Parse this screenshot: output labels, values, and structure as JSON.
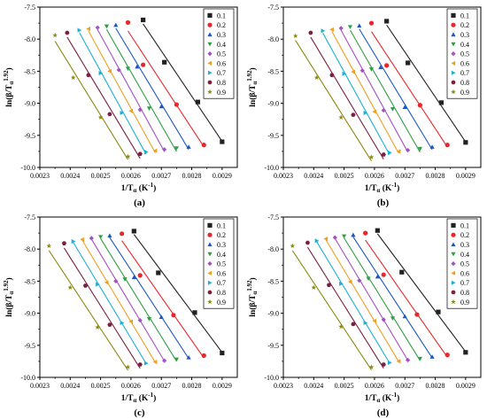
{
  "figure": {
    "panels": [
      {
        "panel_label": "(a)",
        "chart_data": {
          "type": "scatter",
          "xlabel": "1/T",
          "xlabel_sub": "α",
          "xlabel_unit": " (K",
          "xlabel_unit_sup": "-1",
          "xlabel_unit_end": ")",
          "ylabel": "ln(β/T",
          "ylabel_sub": "α",
          "ylabel_sup": "1.92",
          "ylabel_end": ")",
          "xlim": [
            0.0023,
            0.00295
          ],
          "ylim": [
            -10.0,
            -7.5
          ],
          "xticks": [
            0.0023,
            0.0024,
            0.0025,
            0.0026,
            0.0027,
            0.0028,
            0.0029
          ],
          "xtick_labels": [
            "0.0023",
            "0.0024",
            "0.0025",
            "0.0026",
            "0.0027",
            "0.0028",
            "0.0029"
          ],
          "yticks": [
            -10.0,
            -9.5,
            -9.0,
            -8.5,
            -8.0,
            -7.5
          ],
          "ytick_labels": [
            "-10.0",
            "-9.5",
            "-9.0",
            "-8.5",
            "-8.0",
            "-7.5"
          ],
          "legend_position": "top-right",
          "series": [
            {
              "name": "0.1",
              "color": "#222222",
              "marker": "square",
              "x": [
                0.00264,
                0.00271,
                0.00282,
                0.0029
              ],
              "y": [
                -7.7,
                -8.36,
                -8.98,
                -9.6
              ]
            },
            {
              "name": "0.2",
              "color": "#e8262b",
              "marker": "circle",
              "x": [
                0.00259,
                0.00264,
                0.00275,
                0.00284
              ],
              "y": [
                -7.74,
                -8.4,
                -9.02,
                -9.65
              ]
            },
            {
              "name": "0.3",
              "color": "#1a56c4",
              "marker": "triangle-up",
              "x": [
                0.00255,
                0.00262,
                0.0027,
                0.00279
              ],
              "y": [
                -7.78,
                -8.43,
                -9.05,
                -9.68
              ]
            },
            {
              "name": "0.4",
              "color": "#2e9e44",
              "marker": "triangle-down",
              "x": [
                0.00252,
                0.00259,
                0.00266,
                0.00275
              ],
              "y": [
                -7.8,
                -8.46,
                -9.08,
                -9.7
              ]
            },
            {
              "name": "0.5",
              "color": "#a44fc6",
              "marker": "diamond",
              "x": [
                0.00249,
                0.00256,
                0.00263,
                0.00271
              ],
              "y": [
                -7.82,
                -8.48,
                -9.1,
                -9.72
              ]
            },
            {
              "name": "0.6",
              "color": "#f0a020",
              "marker": "triangle-left",
              "x": [
                0.00246,
                0.00253,
                0.0026,
                0.00268
              ],
              "y": [
                -7.84,
                -8.5,
                -9.12,
                -9.74
              ]
            },
            {
              "name": "0.7",
              "color": "#1bb0d6",
              "marker": "triangle-right",
              "x": [
                0.00243,
                0.0025,
                0.00257,
                0.00265
              ],
              "y": [
                -7.86,
                -8.53,
                -9.15,
                -9.76
              ]
            },
            {
              "name": "0.8",
              "color": "#7a1f3d",
              "marker": "hexagon",
              "x": [
                0.00239,
                0.00246,
                0.00253,
                0.00263
              ],
              "y": [
                -7.9,
                -8.56,
                -9.17,
                -9.79
              ]
            },
            {
              "name": "0.9",
              "color": "#8a8a10",
              "marker": "star",
              "x": [
                0.00235,
                0.00241,
                0.0025,
                0.00259
              ],
              "y": [
                -7.94,
                -8.6,
                -9.22,
                -9.83
              ]
            }
          ]
        }
      },
      {
        "panel_label": "(b)",
        "chart_data": {
          "type": "scatter",
          "xlabel": "1/T",
          "xlabel_sub": "α",
          "xlabel_unit": " (K",
          "xlabel_unit_sup": "-1",
          "xlabel_unit_end": ")",
          "ylabel": "ln(β/T",
          "ylabel_sub": "α",
          "ylabel_sup": "1.92",
          "ylabel_end": ")",
          "xlim": [
            0.0023,
            0.00295
          ],
          "ylim": [
            -10.0,
            -7.5
          ],
          "xticks": [
            0.0023,
            0.0024,
            0.0025,
            0.0026,
            0.0027,
            0.0028,
            0.0029
          ],
          "xtick_labels": [
            "0.0023",
            "0.0024",
            "0.0025",
            "0.0026",
            "0.0027",
            "0.0028",
            "0.0029"
          ],
          "yticks": [
            -10.0,
            -9.5,
            -9.0,
            -8.5,
            -8.0,
            -7.5
          ],
          "ytick_labels": [
            "-10.0",
            "-9.5",
            "-9.0",
            "-8.5",
            "-8.0",
            "-7.5"
          ],
          "legend_position": "top-right",
          "series": [
            {
              "name": "0.1",
              "color": "#222222",
              "marker": "square",
              "x": [
                0.00264,
                0.00271,
                0.00282,
                0.0029
              ],
              "y": [
                -7.72,
                -8.37,
                -8.99,
                -9.61
              ]
            },
            {
              "name": "0.2",
              "color": "#e8262b",
              "marker": "circle",
              "x": [
                0.00259,
                0.00264,
                0.00275,
                0.00284
              ],
              "y": [
                -7.75,
                -8.41,
                -9.03,
                -9.65
              ]
            },
            {
              "name": "0.3",
              "color": "#1a56c4",
              "marker": "triangle-up",
              "x": [
                0.00255,
                0.00262,
                0.0027,
                0.00279
              ],
              "y": [
                -7.79,
                -8.44,
                -9.06,
                -9.68
              ]
            },
            {
              "name": "0.4",
              "color": "#2e9e44",
              "marker": "triangle-down",
              "x": [
                0.00252,
                0.00259,
                0.00266,
                0.00275
              ],
              "y": [
                -7.81,
                -8.47,
                -9.09,
                -9.71
              ]
            },
            {
              "name": "0.5",
              "color": "#a44fc6",
              "marker": "diamond",
              "x": [
                0.00249,
                0.00256,
                0.00263,
                0.00271
              ],
              "y": [
                -7.83,
                -8.49,
                -9.11,
                -9.73
              ]
            },
            {
              "name": "0.6",
              "color": "#f0a020",
              "marker": "triangle-left",
              "x": [
                0.00246,
                0.00253,
                0.0026,
                0.00268
              ],
              "y": [
                -7.85,
                -8.51,
                -9.13,
                -9.75
              ]
            },
            {
              "name": "0.7",
              "color": "#1bb0d6",
              "marker": "triangle-right",
              "x": [
                0.00243,
                0.0025,
                0.00257,
                0.00265
              ],
              "y": [
                -7.87,
                -8.54,
                -9.15,
                -9.77
              ]
            },
            {
              "name": "0.8",
              "color": "#7a1f3d",
              "marker": "hexagon",
              "x": [
                0.00239,
                0.00246,
                0.00253,
                0.00263
              ],
              "y": [
                -7.9,
                -8.56,
                -9.18,
                -9.8
              ]
            },
            {
              "name": "0.9",
              "color": "#8a8a10",
              "marker": "star",
              "x": [
                0.00234,
                0.00241,
                0.00249,
                0.00259
              ],
              "y": [
                -7.95,
                -8.6,
                -9.22,
                -9.84
              ]
            }
          ]
        }
      },
      {
        "panel_label": "(c)",
        "chart_data": {
          "type": "scatter",
          "xlabel": "1/T",
          "xlabel_sub": "α",
          "xlabel_unit": " (K",
          "xlabel_unit_sup": "-1",
          "xlabel_unit_end": ")",
          "ylabel": "ln(β/T",
          "ylabel_sub": "α",
          "ylabel_sup": "1.92",
          "ylabel_end": ")",
          "xlim": [
            0.0023,
            0.00295
          ],
          "ylim": [
            -10.0,
            -7.5
          ],
          "xticks": [
            0.0023,
            0.0024,
            0.0025,
            0.0026,
            0.0027,
            0.0028,
            0.0029
          ],
          "xtick_labels": [
            "0.0023",
            "0.0024",
            "0.0025",
            "0.0026",
            "0.0027",
            "0.0028",
            "0.0029"
          ],
          "yticks": [
            -10.0,
            -9.5,
            -9.0,
            -8.5,
            -8.0,
            -7.5
          ],
          "ytick_labels": [
            "-10.0",
            "-9.5",
            "-9.0",
            "-8.5",
            "-8.0",
            "-7.5"
          ],
          "legend_position": "top-right",
          "series": [
            {
              "name": "0.1",
              "color": "#222222",
              "marker": "square",
              "x": [
                0.00261,
                0.00269,
                0.00281,
                0.0029
              ],
              "y": [
                -7.72,
                -8.37,
                -8.99,
                -9.62
              ]
            },
            {
              "name": "0.2",
              "color": "#e8262b",
              "marker": "circle",
              "x": [
                0.00257,
                0.00263,
                0.00274,
                0.00284
              ],
              "y": [
                -7.76,
                -8.41,
                -9.03,
                -9.66
              ]
            },
            {
              "name": "0.3",
              "color": "#1a56c4",
              "marker": "triangle-up",
              "x": [
                0.00253,
                0.00261,
                0.0027,
                0.00279
              ],
              "y": [
                -7.79,
                -8.44,
                -9.06,
                -9.69
              ]
            },
            {
              "name": "0.4",
              "color": "#2e9e44",
              "marker": "triangle-down",
              "x": [
                0.0025,
                0.00258,
                0.00266,
                0.00275
              ],
              "y": [
                -7.81,
                -8.47,
                -9.09,
                -9.72
              ]
            },
            {
              "name": "0.5",
              "color": "#a44fc6",
              "marker": "diamond",
              "x": [
                0.00247,
                0.00255,
                0.00263,
                0.00271
              ],
              "y": [
                -7.83,
                -8.5,
                -9.11,
                -9.74
              ]
            },
            {
              "name": "0.6",
              "color": "#f0a020",
              "marker": "triangle-left",
              "x": [
                0.00244,
                0.00252,
                0.0026,
                0.00268
              ],
              "y": [
                -7.85,
                -8.52,
                -9.13,
                -9.76
              ]
            },
            {
              "name": "0.7",
              "color": "#1bb0d6",
              "marker": "triangle-right",
              "x": [
                0.00241,
                0.00249,
                0.00257,
                0.00265
              ],
              "y": [
                -7.88,
                -8.55,
                -9.15,
                -9.78
              ]
            },
            {
              "name": "0.8",
              "color": "#7a1f3d",
              "marker": "hexagon",
              "x": [
                0.00238,
                0.00245,
                0.00253,
                0.00263
              ],
              "y": [
                -7.91,
                -8.57,
                -9.18,
                -9.8
              ]
            },
            {
              "name": "0.9",
              "color": "#8a8a10",
              "marker": "star",
              "x": [
                0.00233,
                0.0024,
                0.00249,
                0.00259
              ],
              "y": [
                -7.95,
                -8.6,
                -9.22,
                -9.84
              ]
            }
          ]
        }
      },
      {
        "panel_label": "(d)",
        "chart_data": {
          "type": "scatter",
          "xlabel": "1/T",
          "xlabel_sub": "α",
          "xlabel_unit": " (K",
          "xlabel_unit_sup": "-1",
          "xlabel_unit_end": ")",
          "ylabel": "ln(β/T",
          "ylabel_sub": "α",
          "ylabel_sup": "1.92",
          "ylabel_end": ")",
          "xlim": [
            0.0023,
            0.00295
          ],
          "ylim": [
            -10.0,
            -7.5
          ],
          "xticks": [
            0.0023,
            0.0024,
            0.0025,
            0.0026,
            0.0027,
            0.0028,
            0.0029
          ],
          "xtick_labels": [
            "0.0023",
            "0.0024",
            "0.0025",
            "0.0026",
            "0.0027",
            "0.0028",
            "0.0029"
          ],
          "yticks": [
            -10.0,
            -9.5,
            -9.0,
            -8.5,
            -8.0,
            -7.5
          ],
          "ytick_labels": [
            "-10.0",
            "-9.5",
            "-9.0",
            "-8.5",
            "-8.0",
            "-7.5"
          ],
          "legend_position": "top-right",
          "series": [
            {
              "name": "0.1",
              "color": "#222222",
              "marker": "square",
              "x": [
                0.00261,
                0.00269,
                0.00281,
                0.0029
              ],
              "y": [
                -7.71,
                -8.36,
                -8.98,
                -9.61
              ]
            },
            {
              "name": "0.2",
              "color": "#e8262b",
              "marker": "circle",
              "x": [
                0.00257,
                0.00263,
                0.00274,
                0.00284
              ],
              "y": [
                -7.75,
                -8.4,
                -9.02,
                -9.65
              ]
            },
            {
              "name": "0.3",
              "color": "#1a56c4",
              "marker": "triangle-up",
              "x": [
                0.00253,
                0.00261,
                0.0027,
                0.00279
              ],
              "y": [
                -7.78,
                -8.43,
                -9.05,
                -9.68
              ]
            },
            {
              "name": "0.4",
              "color": "#2e9e44",
              "marker": "triangle-down",
              "x": [
                0.0025,
                0.00258,
                0.00266,
                0.00275
              ],
              "y": [
                -7.8,
                -8.46,
                -9.08,
                -9.71
              ]
            },
            {
              "name": "0.5",
              "color": "#a44fc6",
              "marker": "diamond",
              "x": [
                0.00247,
                0.00255,
                0.00263,
                0.00271
              ],
              "y": [
                -7.82,
                -8.49,
                -9.1,
                -9.73
              ]
            },
            {
              "name": "0.6",
              "color": "#f0a020",
              "marker": "triangle-left",
              "x": [
                0.00244,
                0.00252,
                0.0026,
                0.00268
              ],
              "y": [
                -7.84,
                -8.51,
                -9.12,
                -9.75
              ]
            },
            {
              "name": "0.7",
              "color": "#1bb0d6",
              "marker": "triangle-right",
              "x": [
                0.00241,
                0.00249,
                0.00257,
                0.00265
              ],
              "y": [
                -7.87,
                -8.54,
                -9.15,
                -9.77
              ]
            },
            {
              "name": "0.8",
              "color": "#7a1f3d",
              "marker": "hexagon",
              "x": [
                0.00238,
                0.00245,
                0.00253,
                0.00263
              ],
              "y": [
                -7.9,
                -8.56,
                -9.17,
                -9.8
              ]
            },
            {
              "name": "0.9",
              "color": "#8a8a10",
              "marker": "star",
              "x": [
                0.00233,
                0.0024,
                0.00249,
                0.00259
              ],
              "y": [
                -7.95,
                -8.6,
                -9.21,
                -9.84
              ]
            }
          ]
        }
      }
    ]
  }
}
